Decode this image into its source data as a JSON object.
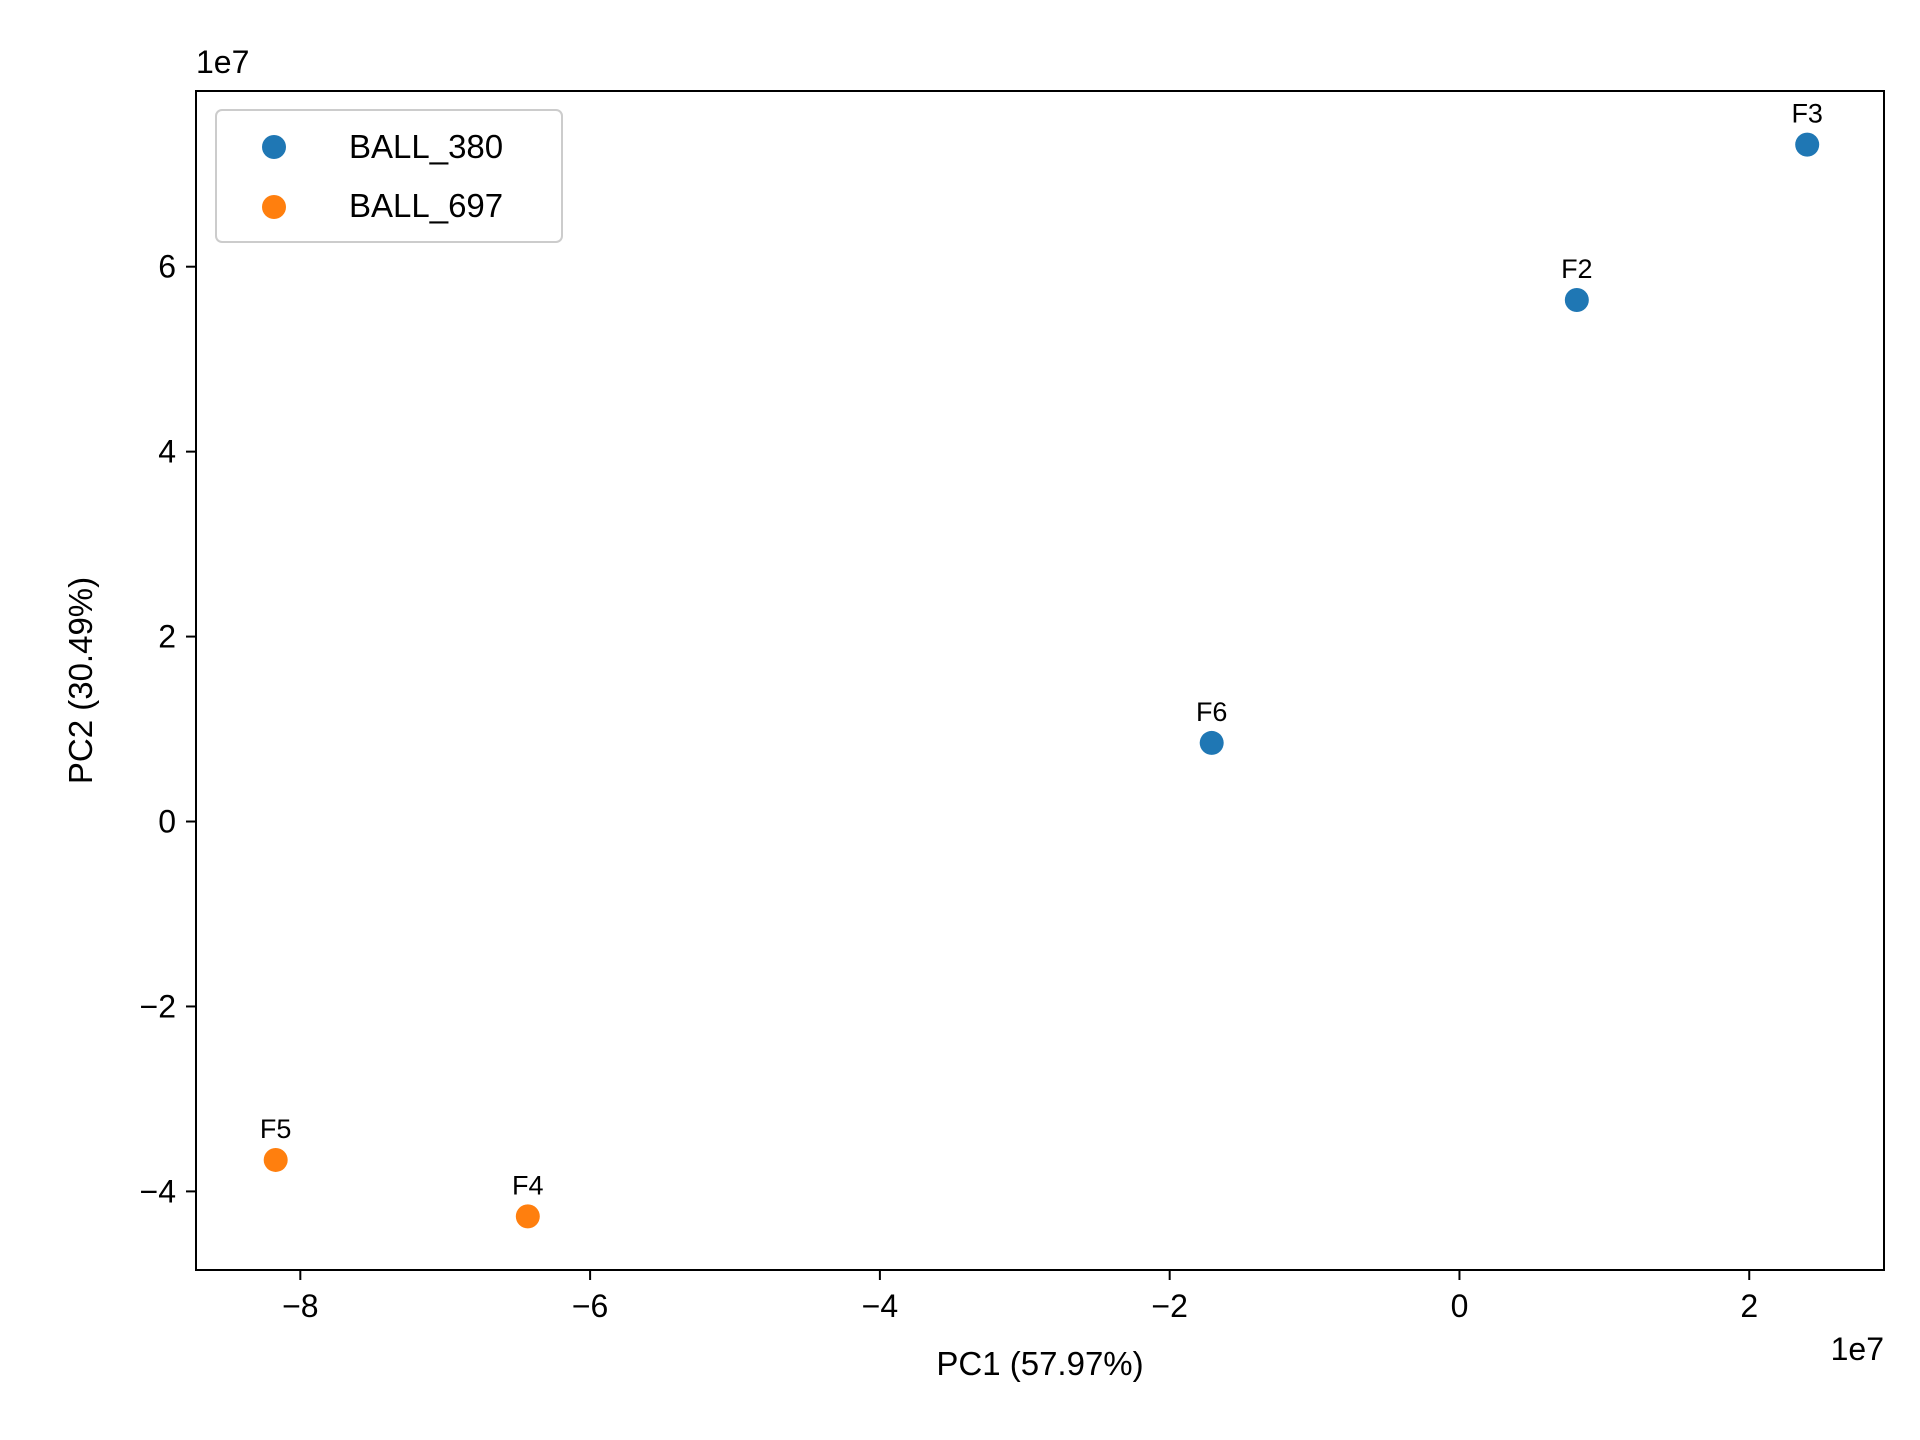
{
  "chart_data": {
    "type": "scatter",
    "title": "",
    "xlabel": "PC1 (57.97%)",
    "ylabel": "PC2 (30.49%)",
    "x_offset_text": "1e7",
    "y_offset_text": "1e7",
    "xlim": [
      -8.72,
      2.93
    ],
    "ylim": [
      -4.85,
      7.9
    ],
    "x_ticks": [
      -8,
      -6,
      -4,
      -2,
      0,
      2
    ],
    "y_ticks": [
      -4,
      -2,
      0,
      2,
      4,
      6
    ],
    "x_tick_labels": [
      "−8",
      "−6",
      "−4",
      "−2",
      "0",
      "2"
    ],
    "y_tick_labels": [
      "−4",
      "−2",
      "0",
      "2",
      "4",
      "6"
    ],
    "grid": false,
    "legend_position": "upper-left",
    "series": [
      {
        "name": "BALL_380",
        "color": "#1f77b4",
        "points": [
          {
            "label": "F3",
            "x": 2.4,
            "y": 7.32
          },
          {
            "label": "F2",
            "x": 0.81,
            "y": 5.64
          },
          {
            "label": "F6",
            "x": -1.71,
            "y": 0.85
          }
        ]
      },
      {
        "name": "BALL_697",
        "color": "#ff7f0e",
        "points": [
          {
            "label": "F5",
            "x": -8.17,
            "y": -3.66
          },
          {
            "label": "F4",
            "x": -6.43,
            "y": -4.27
          }
        ]
      }
    ]
  }
}
